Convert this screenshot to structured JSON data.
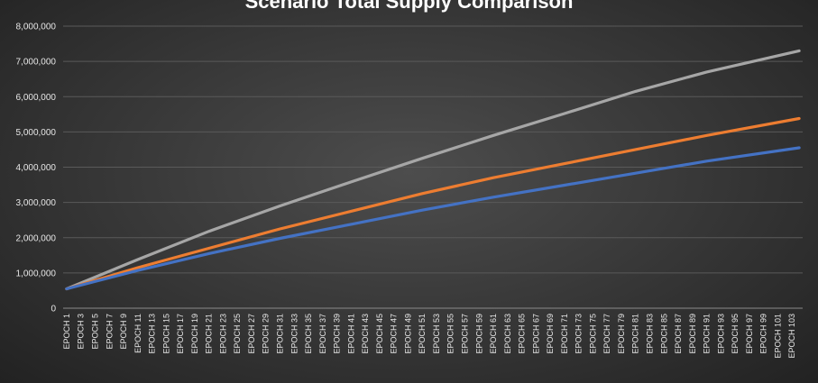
{
  "chart_data": {
    "type": "line",
    "title": "Scenario Total Supply Comparison",
    "xlabel": "",
    "ylabel": "",
    "ylim": [
      0,
      8000000
    ],
    "y_ticks": [
      "0",
      "1,000,000",
      "2,000,000",
      "3,000,000",
      "4,000,000",
      "5,000,000",
      "6,000,000",
      "7,000,000",
      "8,000,000"
    ],
    "x_ticks": [
      "EPOCH 1",
      "EPOCH 3",
      "EPOCH 5",
      "EPOCH 7",
      "EPOCH 9",
      "EPOCH 11",
      "EPOCH 13",
      "EPOCH 15",
      "EPOCH 17",
      "EPOCH 19",
      "EPOCH 21",
      "EPOCH 23",
      "EPOCH 25",
      "EPOCH 27",
      "EPOCH 29",
      "EPOCH 31",
      "EPOCH 33",
      "EPOCH 35",
      "EPOCH 37",
      "EPOCH 39",
      "EPOCH 41",
      "EPOCH 43",
      "EPOCH 45",
      "EPOCH 47",
      "EPOCH 49",
      "EPOCH 51",
      "EPOCH 53",
      "EPOCH 55",
      "EPOCH 57",
      "EPOCH 59",
      "EPOCH 61",
      "EPOCH 63",
      "EPOCH 65",
      "EPOCH 67",
      "EPOCH 69",
      "EPOCH 71",
      "EPOCH 73",
      "EPOCH 75",
      "EPOCH 77",
      "EPOCH 79",
      "EPOCH 81",
      "EPOCH 83",
      "EPOCH 85",
      "EPOCH 87",
      "EPOCH 89",
      "EPOCH 91",
      "EPOCH 93",
      "EPOCH 95",
      "EPOCH 97",
      "EPOCH 99",
      "EPOCH 101",
      "EPOCH 103"
    ],
    "grid": true,
    "legend": "none",
    "series": [
      {
        "color": "#a6a6a6",
        "x": [
          "EPOCH 1",
          "EPOCH 11",
          "EPOCH 21",
          "EPOCH 31",
          "EPOCH 41",
          "EPOCH 51",
          "EPOCH 61",
          "EPOCH 71",
          "EPOCH 81",
          "EPOCH 91",
          "EPOCH 104"
        ],
        "values": [
          550000,
          1380000,
          2180000,
          2900000,
          3580000,
          4250000,
          4900000,
          5520000,
          6150000,
          6700000,
          7300000
        ]
      },
      {
        "color": "#ed7d31",
        "x": [
          "EPOCH 1",
          "EPOCH 11",
          "EPOCH 21",
          "EPOCH 31",
          "EPOCH 41",
          "EPOCH 51",
          "EPOCH 61",
          "EPOCH 71",
          "EPOCH 81",
          "EPOCH 91",
          "EPOCH 104"
        ],
        "values": [
          550000,
          1150000,
          1700000,
          2250000,
          2750000,
          3250000,
          3700000,
          4100000,
          4500000,
          4900000,
          5380000
        ]
      },
      {
        "color": "#4472c4",
        "x": [
          "EPOCH 1",
          "EPOCH 11",
          "EPOCH 21",
          "EPOCH 31",
          "EPOCH 41",
          "EPOCH 51",
          "EPOCH 61",
          "EPOCH 71",
          "EPOCH 81",
          "EPOCH 91",
          "EPOCH 104"
        ],
        "values": [
          550000,
          1070000,
          1550000,
          1980000,
          2380000,
          2780000,
          3150000,
          3490000,
          3830000,
          4170000,
          4550000
        ]
      }
    ]
  }
}
